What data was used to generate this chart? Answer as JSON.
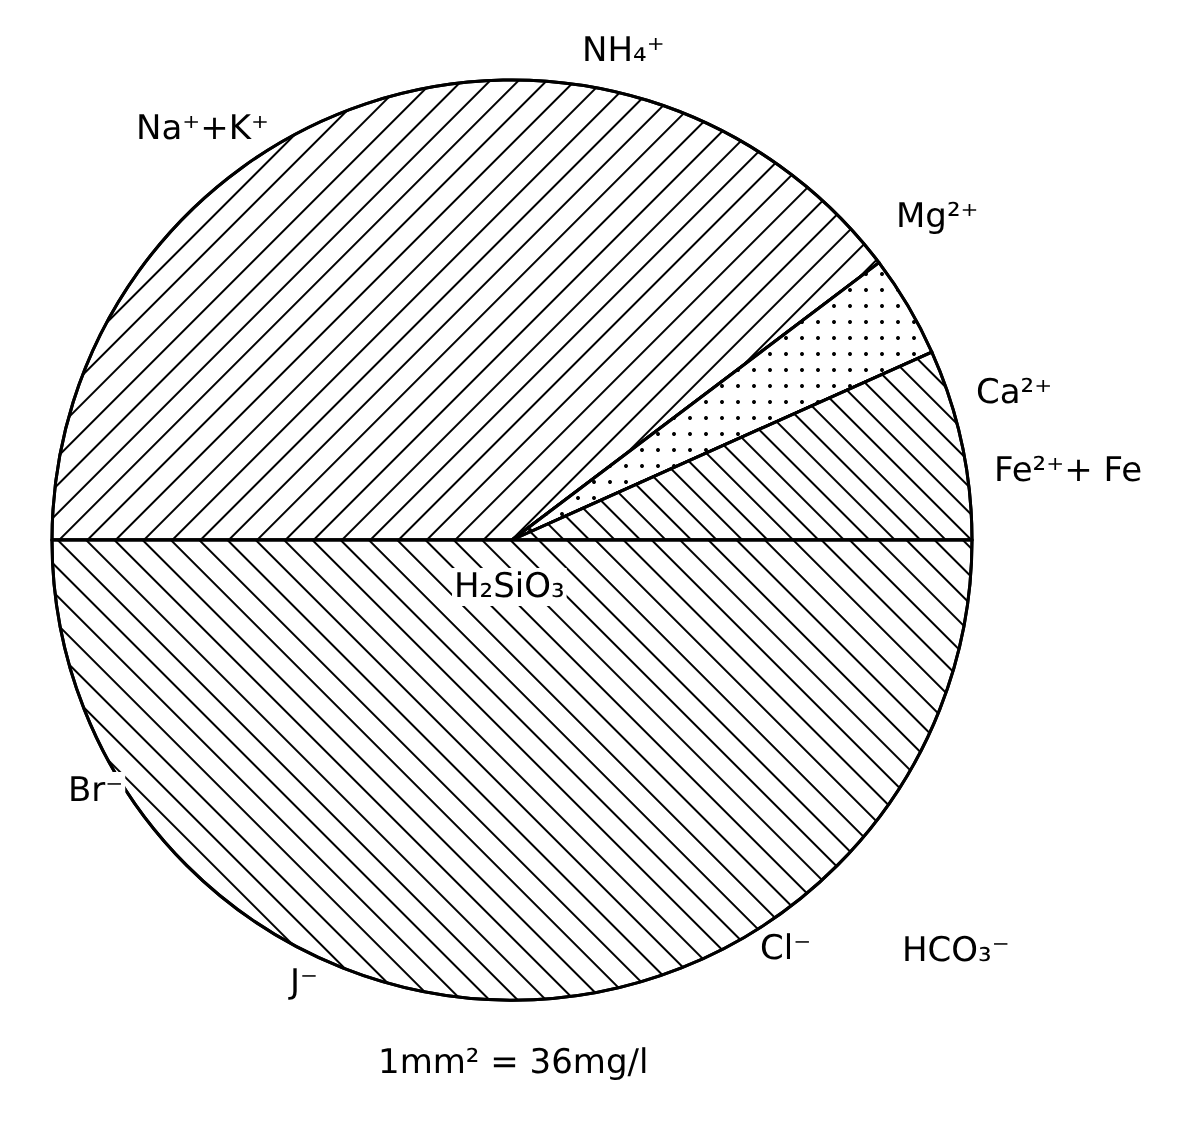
{
  "chart_data": {
    "type": "pie",
    "categories": [
      "Na⁺+K⁺",
      "Mg²⁺",
      "Ca²⁺",
      "Cl⁻"
    ],
    "values": [
      39.7,
      3.6,
      6.7,
      50
    ],
    "legend": false,
    "annotations": [
      "NH₄⁺",
      "Fe²⁺+ Fe",
      "H₂SiO₃",
      "Br⁻",
      "J⁻",
      "HCO₃⁻",
      "1mm² = 36mg/l"
    ]
  }
}
